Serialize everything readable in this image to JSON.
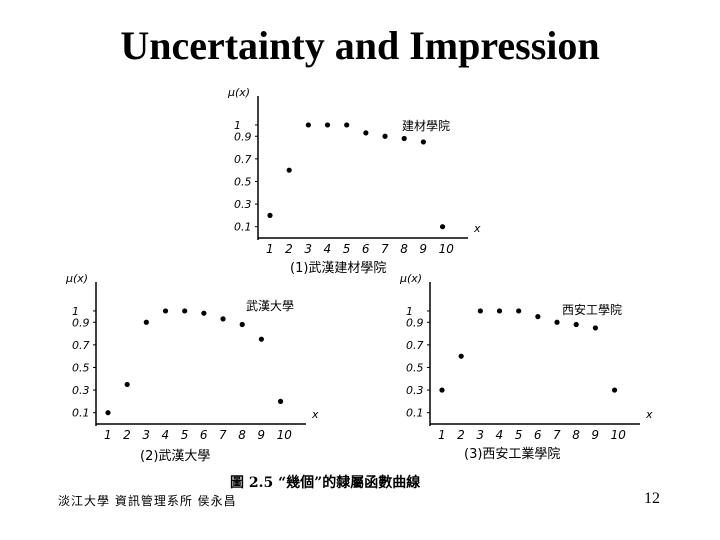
{
  "slide": {
    "title": "Uncertainty and Impression",
    "footer": "淡江大學 資訊管理系所 侯永昌",
    "page_number": "12",
    "figure_caption": "圖 2.5 “幾個”的隸屬函數曲線"
  },
  "chart_data": [
    {
      "type": "scatter",
      "caption": "(1)武漢建材學院",
      "annotation": "建材學院",
      "ylabel": "μ(x)",
      "xlabel": "x",
      "x": [
        1,
        2,
        3,
        4,
        5,
        6,
        7,
        8,
        9,
        10
      ],
      "y": [
        0.2,
        0.6,
        1.0,
        1.0,
        1.0,
        0.93,
        0.9,
        0.88,
        0.85,
        0.1
      ],
      "y_ticks": [
        "0.1",
        "0.3",
        "0.5",
        "0.7",
        "0.9",
        "1"
      ],
      "x_ticks": [
        "1",
        "2",
        "3",
        "4",
        "5",
        "6",
        "7",
        "8",
        "9",
        "10"
      ],
      "ylim": [
        0,
        1.15
      ]
    },
    {
      "type": "scatter",
      "caption": "(2)武漢大學",
      "annotation": "武漢大學",
      "ylabel": "μ(x)",
      "xlabel": "x",
      "x": [
        1,
        2,
        3,
        4,
        5,
        6,
        7,
        8,
        9,
        10
      ],
      "y": [
        0.1,
        0.35,
        0.9,
        1.0,
        1.0,
        0.98,
        0.93,
        0.88,
        0.75,
        0.2
      ],
      "y_ticks": [
        "0.1",
        "0.3",
        "0.5",
        "0.7",
        "0.9",
        "1"
      ],
      "x_ticks": [
        "1",
        "2",
        "3",
        "4",
        "5",
        "6",
        "7",
        "8",
        "9",
        "10"
      ],
      "ylim": [
        0,
        1.15
      ]
    },
    {
      "type": "scatter",
      "caption": "(3)西安工業學院",
      "annotation": "西安工學院",
      "ylabel": "μ(x)",
      "xlabel": "x",
      "x": [
        1,
        2,
        3,
        4,
        5,
        6,
        7,
        8,
        9,
        10
      ],
      "y": [
        0.3,
        0.6,
        1.0,
        1.0,
        1.0,
        0.95,
        0.9,
        0.88,
        0.85,
        0.3
      ],
      "y_ticks": [
        "0.1",
        "0.3",
        "0.5",
        "0.7",
        "0.9",
        "1"
      ],
      "x_ticks": [
        "1",
        "2",
        "3",
        "4",
        "5",
        "6",
        "7",
        "8",
        "9",
        "10"
      ],
      "ylim": [
        0,
        1.15
      ]
    }
  ]
}
